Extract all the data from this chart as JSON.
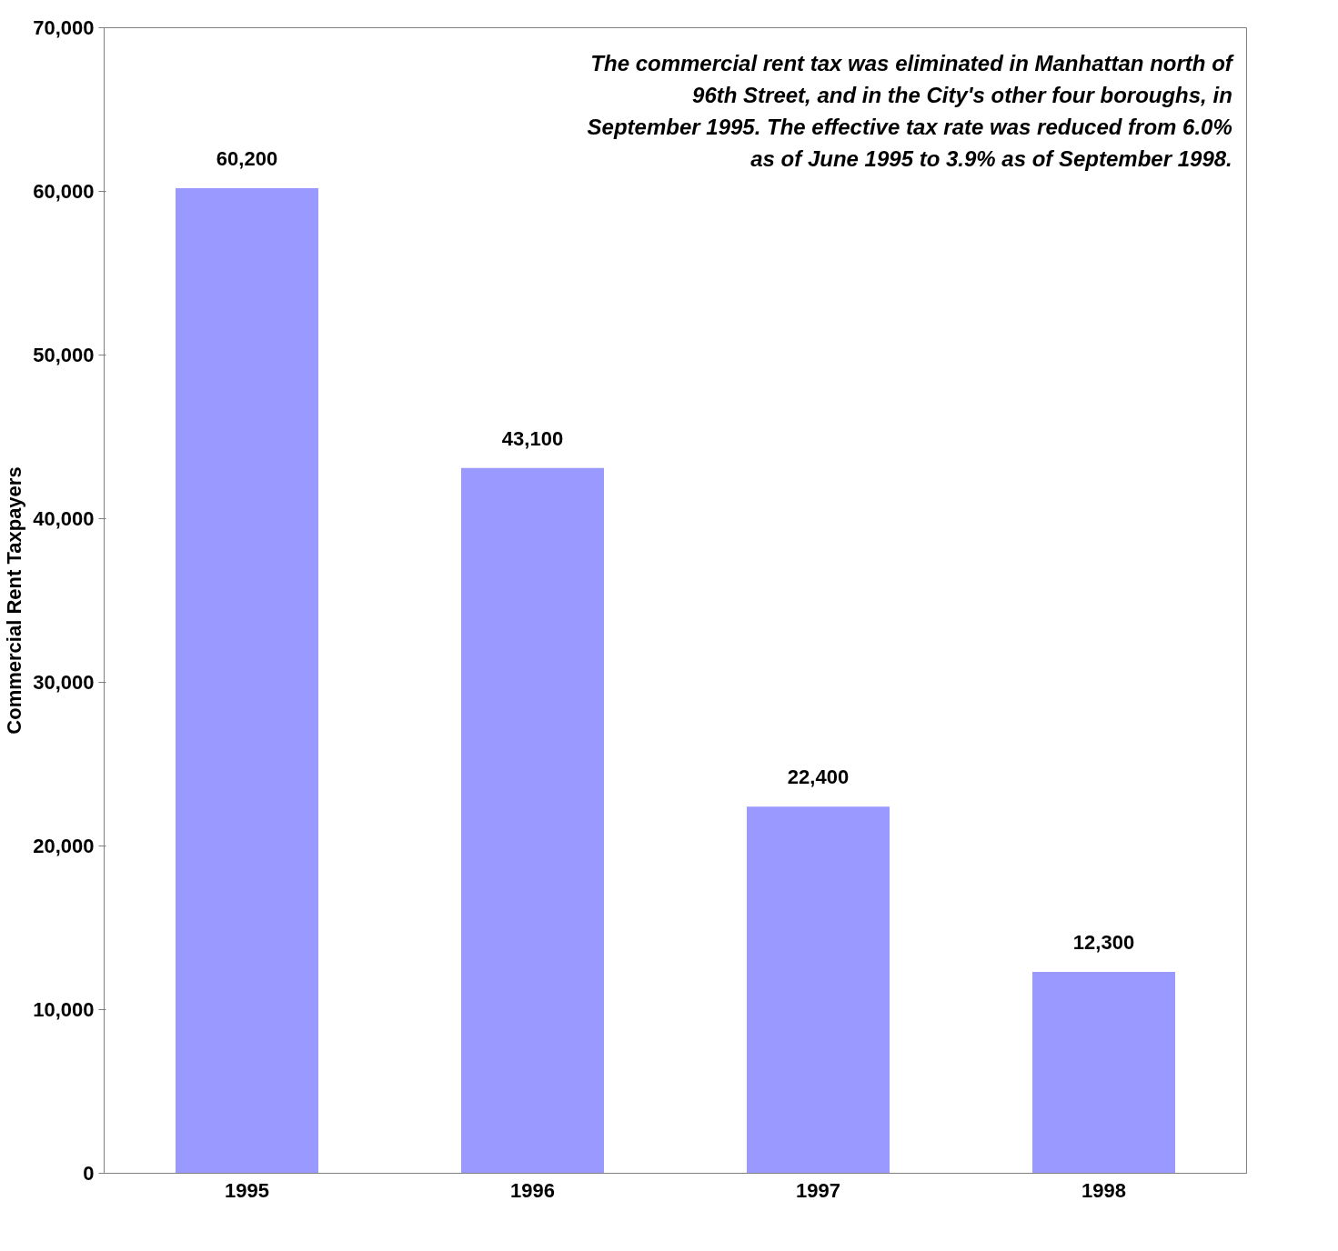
{
  "chart_data": {
    "type": "bar",
    "ylabel": "Commercial Rent Taxpayers",
    "categories": [
      "1995",
      "1996",
      "1997",
      "1998"
    ],
    "values": [
      60200,
      43100,
      22400,
      12300
    ],
    "color": "#9999ff",
    "value_labels": [
      "60,200",
      "43,100",
      "22,400",
      "12,300"
    ],
    "ylim": [
      0,
      70000
    ],
    "yticks": [
      0,
      {
        "value": 10000,
        "label": "10,000"
      },
      {
        "value": 20000,
        "label": "20,000"
      },
      {
        "value": 30000,
        "label": "30,000"
      },
      {
        "value": 40000,
        "label": "40,000"
      },
      {
        "value": 50000,
        "label": "50,000"
      },
      {
        "value": 60000,
        "label": "60,000"
      },
      {
        "value": 70000,
        "label": "70,000"
      }
    ],
    "grid": false,
    "annotations": [
      "The commercial rent tax was eliminated in Manhattan north of 96th Street, and in the City's other four boroughs, in September 1995. The effective tax rate was reduced from 6.0% as of June 1995 to 3.9% as of September 1998."
    ]
  }
}
